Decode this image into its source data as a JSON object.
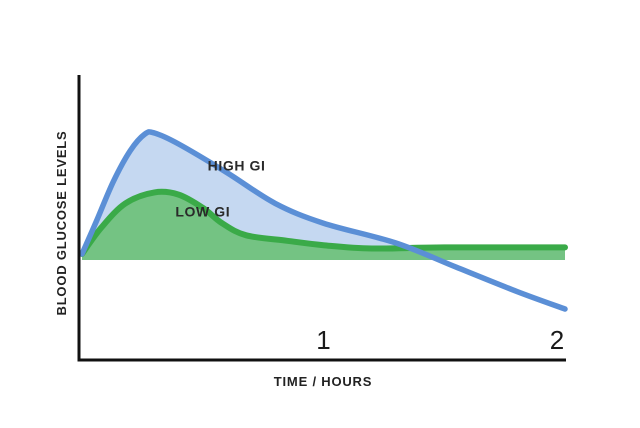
{
  "chart_data": {
    "type": "line",
    "title": "",
    "xlabel": "TIME / HOURS",
    "ylabel": "BLOOD GLUCOSE LEVELS",
    "x_ticks": [
      1,
      2
    ],
    "xlim": [
      0,
      2
    ],
    "ylim": [
      0,
      100
    ],
    "baseline": 30,
    "grid": false,
    "legend": "none",
    "series": [
      {
        "name": "HIGH GI",
        "color": "#5b8fd6",
        "fill": "#c5d8f1",
        "points": [
          [
            0.0,
            30
          ],
          [
            0.06,
            45
          ],
          [
            0.13,
            63
          ],
          [
            0.2,
            77
          ],
          [
            0.26,
            84.5
          ],
          [
            0.3,
            85
          ],
          [
            0.4,
            80
          ],
          [
            0.6,
            67
          ],
          [
            0.8,
            53
          ],
          [
            1.0,
            44
          ],
          [
            1.3,
            35
          ],
          [
            1.55,
            24
          ],
          [
            1.8,
            13
          ],
          [
            2.0,
            5
          ]
        ]
      },
      {
        "name": "LOW GI",
        "color": "#3aaa48",
        "fill": "#74c383",
        "points": [
          [
            0.0,
            30
          ],
          [
            0.08,
            42
          ],
          [
            0.18,
            53
          ],
          [
            0.3,
            58
          ],
          [
            0.4,
            57
          ],
          [
            0.5,
            51
          ],
          [
            0.58,
            44
          ],
          [
            0.68,
            38.5
          ],
          [
            0.85,
            36
          ],
          [
            1.0,
            34
          ],
          [
            1.2,
            32.5
          ],
          [
            1.5,
            33
          ],
          [
            2.0,
            33
          ]
        ]
      }
    ],
    "annotations": [
      {
        "text": "HIGH GI",
        "x": 0.64,
        "y": 68
      },
      {
        "text": "LOW GI",
        "x": 0.5,
        "y": 47
      }
    ]
  }
}
